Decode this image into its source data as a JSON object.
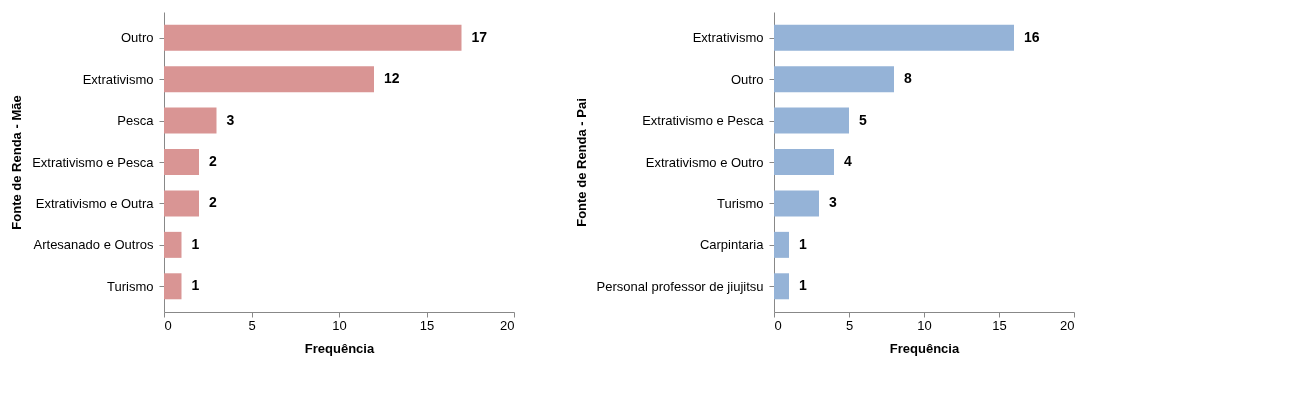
{
  "chart_data": [
    {
      "type": "bar",
      "orientation": "horizontal",
      "ylabel": "Fonte de Renda - Mãe",
      "xlabel": "Frequência",
      "categories": [
        "Outro",
        "Extrativismo",
        "Pesca",
        "Extrativismo e Pesca",
        "Extrativismo e Outra",
        "Artesanado e Outros",
        "Turismo"
      ],
      "values": [
        17,
        12,
        3,
        2,
        2,
        1,
        1
      ],
      "color": "#d99594",
      "xlim": [
        0,
        20
      ],
      "xticks": [
        0,
        5,
        10,
        15,
        20
      ],
      "data_labels": true,
      "grid": false
    },
    {
      "type": "bar",
      "orientation": "horizontal",
      "ylabel": "Fonte de Renda - Pai",
      "xlabel": "Frequência",
      "categories": [
        "Extrativismo",
        "Outro",
        "Extrativismo e Pesca",
        "Extrativismo e Outro",
        "Turismo",
        "Carpintaria",
        "Personal professor de jiujitsu"
      ],
      "values": [
        16,
        8,
        5,
        4,
        3,
        1,
        1
      ],
      "color": "#95b3d7",
      "xlim": [
        0,
        20
      ],
      "xticks": [
        0,
        5,
        10,
        15,
        20
      ],
      "data_labels": true,
      "grid": false
    }
  ]
}
